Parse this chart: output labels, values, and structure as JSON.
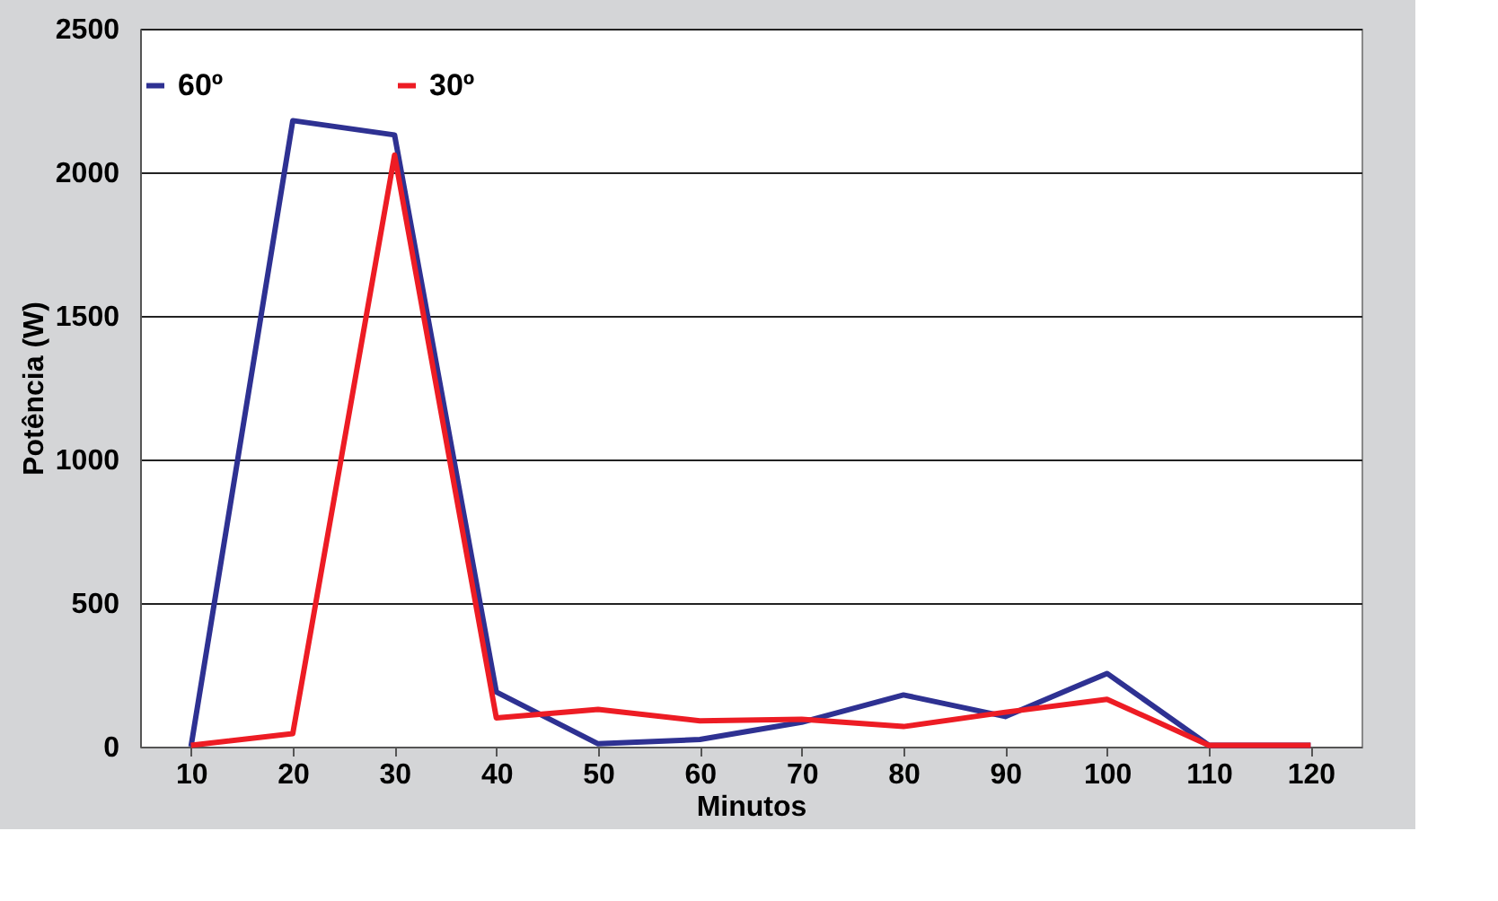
{
  "chart_data": {
    "type": "line",
    "xlabel": "Minutos",
    "ylabel": "Potência (W)",
    "categories": [
      "10",
      "20",
      "30",
      "40",
      "50",
      "60",
      "70",
      "80",
      "90",
      "100",
      "110",
      "120"
    ],
    "series": [
      {
        "name": "60º",
        "color": "#2e3192",
        "values": [
          0,
          2180,
          2130,
          190,
          10,
          25,
          85,
          180,
          105,
          255,
          5,
          5
        ]
      },
      {
        "name": "30º",
        "color": "#ed1c24",
        "values": [
          5,
          45,
          2060,
          100,
          130,
          90,
          95,
          70,
          120,
          165,
          5,
          5
        ]
      }
    ],
    "ylim": [
      0,
      2500
    ],
    "yticks": [
      0,
      500,
      1000,
      1500,
      2000,
      2500
    ],
    "grid": "y",
    "legend": "top",
    "marker": "none",
    "line_style": "solid"
  }
}
